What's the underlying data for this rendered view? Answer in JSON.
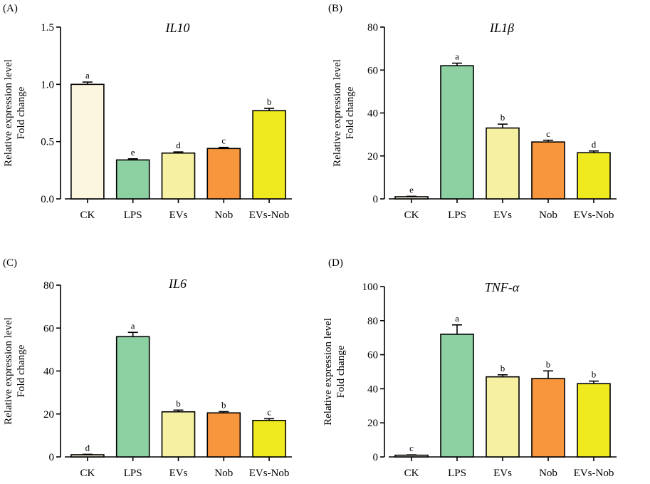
{
  "figure": {
    "colors": {
      "CK": "#fdf6df",
      "LPS": "#8dd1a2",
      "EVs": "#f6f0a2",
      "Nob": "#f8963d",
      "EVs-Nob": "#efe91f"
    },
    "ylabel_line1": "Relative expression level",
    "ylabel_line2": "Fold change"
  },
  "chart_data": [
    {
      "type": "bar",
      "panel_label": "(A)",
      "title": "IL10",
      "categories": [
        "CK",
        "LPS",
        "EVs",
        "Nob",
        "EVs-Nob"
      ],
      "values": [
        1.0,
        0.34,
        0.4,
        0.44,
        0.77
      ],
      "errors": [
        0.02,
        0.01,
        0.01,
        0.01,
        0.02
      ],
      "significance": [
        "a",
        "e",
        "d",
        "c",
        "b"
      ],
      "ylim": [
        0,
        1.5
      ],
      "yticks": [
        0.0,
        0.5,
        1.0,
        1.5
      ],
      "ytick_labels": [
        "0.0",
        "0.5",
        "1.0",
        "1.5"
      ],
      "ylabel": "Relative expression level Fold change",
      "xlabel": ""
    },
    {
      "type": "bar",
      "panel_label": "(B)",
      "title": "IL1β",
      "categories": [
        "CK",
        "LPS",
        "EVs",
        "Nob",
        "EVs-Nob"
      ],
      "values": [
        1.0,
        62,
        33,
        26.5,
        21.5
      ],
      "errors": [
        0.2,
        1.2,
        1.8,
        0.8,
        0.8
      ],
      "significance": [
        "e",
        "a",
        "b",
        "c",
        "d"
      ],
      "ylim": [
        0,
        80
      ],
      "yticks": [
        0,
        20,
        40,
        60,
        80
      ],
      "ytick_labels": [
        "0",
        "20",
        "40",
        "60",
        "80"
      ],
      "ylabel": "Relative expression level Fold change",
      "xlabel": ""
    },
    {
      "type": "bar",
      "panel_label": "(C)",
      "title": "IL6",
      "categories": [
        "CK",
        "LPS",
        "EVs",
        "Nob",
        "EVs-Nob"
      ],
      "values": [
        1.0,
        56,
        21,
        20.5,
        17
      ],
      "errors": [
        0.2,
        2.0,
        0.8,
        0.6,
        0.8
      ],
      "significance": [
        "d",
        "a",
        "b",
        "b",
        "c"
      ],
      "ylim": [
        0,
        80
      ],
      "yticks": [
        0,
        20,
        40,
        60,
        80
      ],
      "ytick_labels": [
        "0",
        "20",
        "40",
        "60",
        "80"
      ],
      "ylabel": "Relative expression level Fold change",
      "xlabel": ""
    },
    {
      "type": "bar",
      "panel_label": "(D)",
      "title": "TNF-α",
      "categories": [
        "CK",
        "LPS",
        "EVs",
        "Nob",
        "EVs-Nob"
      ],
      "values": [
        1.0,
        72,
        47,
        46,
        43
      ],
      "errors": [
        0.2,
        5.5,
        1.2,
        4.5,
        1.5
      ],
      "significance": [
        "c",
        "a",
        "b",
        "b",
        "b"
      ],
      "ylim": [
        0,
        100
      ],
      "yticks": [
        0,
        20,
        40,
        60,
        80,
        100
      ],
      "ytick_labels": [
        "0",
        "20",
        "40",
        "60",
        "80",
        "100"
      ],
      "ylabel": "Relative expression level Fold change",
      "xlabel": ""
    }
  ]
}
